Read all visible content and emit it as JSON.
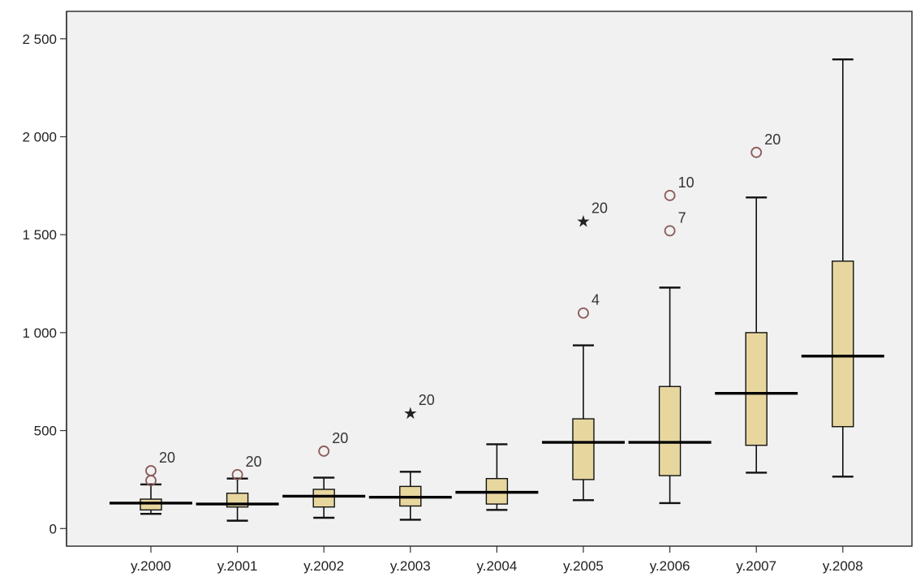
{
  "chart_data": {
    "type": "boxplot",
    "categories": [
      "y.2000",
      "y.2001",
      "y.2002",
      "y.2003",
      "y.2004",
      "y.2005",
      "y.2006",
      "y.2007",
      "y.2008"
    ],
    "boxes": [
      {
        "min": 75,
        "q1": 95,
        "median": 130,
        "q3": 150,
        "max": 225,
        "outliers": [
          {
            "value": 295,
            "label": "20",
            "marker": "circle"
          },
          {
            "value": 245,
            "label": "",
            "marker": "circle"
          }
        ]
      },
      {
        "min": 40,
        "q1": 110,
        "median": 125,
        "q3": 180,
        "max": 255,
        "outliers": [
          {
            "value": 275,
            "label": "20",
            "marker": "circle"
          }
        ]
      },
      {
        "min": 55,
        "q1": 110,
        "median": 165,
        "q3": 200,
        "max": 260,
        "outliers": [
          {
            "value": 395,
            "label": "20",
            "marker": "circle"
          }
        ]
      },
      {
        "min": 45,
        "q1": 115,
        "median": 160,
        "q3": 215,
        "max": 290,
        "outliers": [
          {
            "value": 590,
            "label": "20",
            "marker": "star"
          }
        ]
      },
      {
        "min": 95,
        "q1": 125,
        "median": 185,
        "q3": 255,
        "max": 430,
        "outliers": []
      },
      {
        "min": 145,
        "q1": 250,
        "median": 440,
        "q3": 560,
        "max": 935,
        "outliers": [
          {
            "value": 1100,
            "label": "4",
            "marker": "circle"
          },
          {
            "value": 1570,
            "label": "20",
            "marker": "star"
          }
        ]
      },
      {
        "min": 130,
        "q1": 270,
        "median": 440,
        "q3": 725,
        "max": 1230,
        "outliers": [
          {
            "value": 1520,
            "label": "7",
            "marker": "circle"
          },
          {
            "value": 1700,
            "label": "10",
            "marker": "circle"
          }
        ]
      },
      {
        "min": 285,
        "q1": 425,
        "median": 690,
        "q3": 1000,
        "max": 1690,
        "outliers": [
          {
            "value": 1920,
            "label": "20",
            "marker": "circle"
          }
        ]
      },
      {
        "min": 265,
        "q1": 520,
        "median": 880,
        "q3": 1365,
        "max": 2395,
        "outliers": []
      }
    ],
    "yticks": [
      0,
      500,
      1000,
      1500,
      2000,
      2500
    ],
    "ytick_labels": [
      "0",
      "500",
      "1 000",
      "1 500",
      "2 000",
      "2 500"
    ],
    "ylim": [
      -90,
      2640
    ],
    "title": "",
    "xlabel": "",
    "ylabel": "",
    "grid": false,
    "colors": {
      "box_fill": "#E7D79F",
      "plot_background": "#F0F1F0",
      "outlier": "#8B5A5A",
      "frame": "#333333"
    }
  }
}
